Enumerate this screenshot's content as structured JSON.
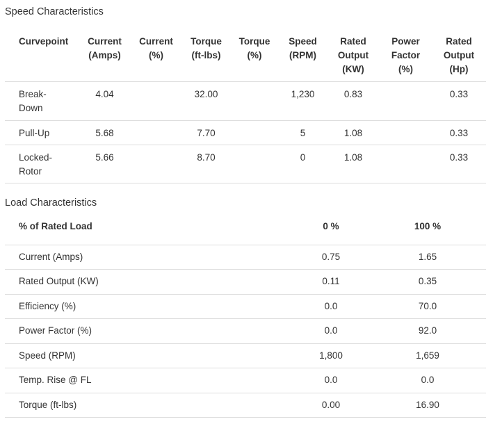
{
  "speed": {
    "title": "Speed Characteristics",
    "headers": [
      [
        "Curvepoint"
      ],
      [
        "Current",
        "(Amps)"
      ],
      [
        "Current",
        "(%)"
      ],
      [
        "Torque",
        "(ft-lbs)"
      ],
      [
        "Torque",
        "(%)"
      ],
      [
        "Speed",
        "(RPM)"
      ],
      [
        "Rated",
        "Output",
        "(KW)"
      ],
      [
        "Power",
        "Factor",
        "(%)"
      ],
      [
        "Rated",
        "Output",
        "(Hp)"
      ]
    ],
    "rows": [
      [
        "Break-\nDown",
        "4.04",
        "",
        "32.00",
        "",
        "1,230",
        "0.83",
        "",
        "0.33"
      ],
      [
        "Pull-Up",
        "5.68",
        "",
        "7.70",
        "",
        "5",
        "1.08",
        "",
        "0.33"
      ],
      [
        "Locked-\nRotor",
        "5.66",
        "",
        "8.70",
        "",
        "0",
        "1.08",
        "",
        "0.33"
      ]
    ]
  },
  "load": {
    "title": "Load Characteristics",
    "headers": [
      "% of Rated Load",
      "0 %",
      "100 %"
    ],
    "rows": [
      [
        "Current (Amps)",
        "0.75",
        "1.65"
      ],
      [
        "Rated Output (KW)",
        "0.11",
        "0.35"
      ],
      [
        "Efficiency (%)",
        "0.0",
        "70.0"
      ],
      [
        "Power Factor (%)",
        "0.0",
        "92.0"
      ],
      [
        "Speed (RPM)",
        "1,800",
        "1,659"
      ],
      [
        "Temp. Rise @ FL",
        "0.0",
        "0.0"
      ],
      [
        "Torque (ft-lbs)",
        "0.00",
        "16.90"
      ]
    ]
  },
  "colors": {
    "text": "#333333",
    "rule": "#dddddd"
  }
}
